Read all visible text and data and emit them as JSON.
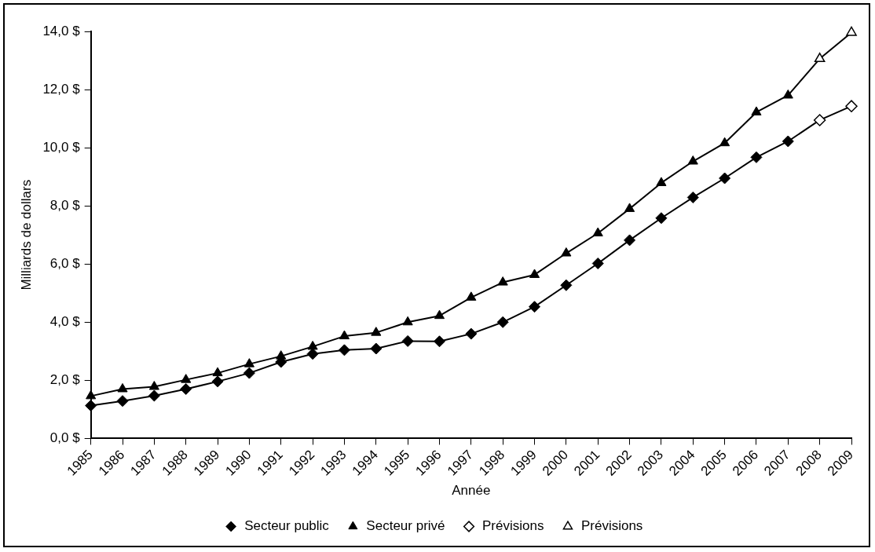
{
  "chart_data": {
    "type": "line",
    "xlabel": "Année",
    "ylabel": "Milliards de dollars",
    "categories": [
      "1985",
      "1986",
      "1987",
      "1988",
      "1989",
      "1990",
      "1991",
      "1992",
      "1993",
      "1994",
      "1995",
      "1996",
      "1997",
      "1998",
      "1999",
      "2000",
      "2001",
      "2002",
      "2003",
      "2004",
      "2005",
      "2006",
      "2007",
      "2008",
      "2009"
    ],
    "ylim": [
      0,
      14
    ],
    "yticks": [
      {
        "value": 0,
        "label": "0,0 $"
      },
      {
        "value": 2,
        "label": "2,0 $"
      },
      {
        "value": 4,
        "label": "4,0 $"
      },
      {
        "value": 6,
        "label": "6,0 $"
      },
      {
        "value": 8,
        "label": "8,0 $"
      },
      {
        "value": 10,
        "label": "10,0 $"
      },
      {
        "value": 12,
        "label": "12,0 $"
      },
      {
        "value": 14,
        "label": "14,0 $"
      }
    ],
    "grid": false,
    "legend": "bottom",
    "line_style": "solid",
    "series": [
      {
        "name": "Secteur public",
        "color": "#000000",
        "marker": "diamond",
        "values": [
          1.13,
          1.29,
          1.47,
          1.7,
          1.96,
          2.25,
          2.63,
          2.91,
          3.04,
          3.09,
          3.35,
          3.34,
          3.6,
          4.0,
          4.53,
          5.27,
          6.02,
          6.82,
          7.58,
          8.29,
          8.95,
          9.67,
          10.22,
          null,
          null
        ]
      },
      {
        "name": "Secteur privé",
        "color": "#000000",
        "marker": "triangle",
        "values": [
          1.46,
          1.7,
          1.78,
          2.02,
          2.25,
          2.56,
          2.83,
          3.16,
          3.52,
          3.64,
          4.0,
          4.22,
          4.85,
          5.37,
          5.63,
          6.37,
          7.06,
          7.9,
          8.79,
          9.53,
          10.16,
          11.22,
          11.8,
          null,
          null
        ]
      },
      {
        "name": "Prévisions",
        "color": "#000000",
        "marker": "diamond",
        "values": [
          null,
          null,
          null,
          null,
          null,
          null,
          null,
          null,
          null,
          null,
          null,
          null,
          null,
          null,
          null,
          null,
          null,
          null,
          null,
          null,
          null,
          null,
          10.22,
          10.95,
          11.43
        ]
      },
      {
        "name": "Prévisions",
        "color": "#000000",
        "marker": "triangle",
        "values": [
          null,
          null,
          null,
          null,
          null,
          null,
          null,
          null,
          null,
          null,
          null,
          null,
          null,
          null,
          null,
          null,
          null,
          null,
          null,
          null,
          null,
          null,
          11.8,
          13.06,
          13.96
        ]
      }
    ]
  }
}
